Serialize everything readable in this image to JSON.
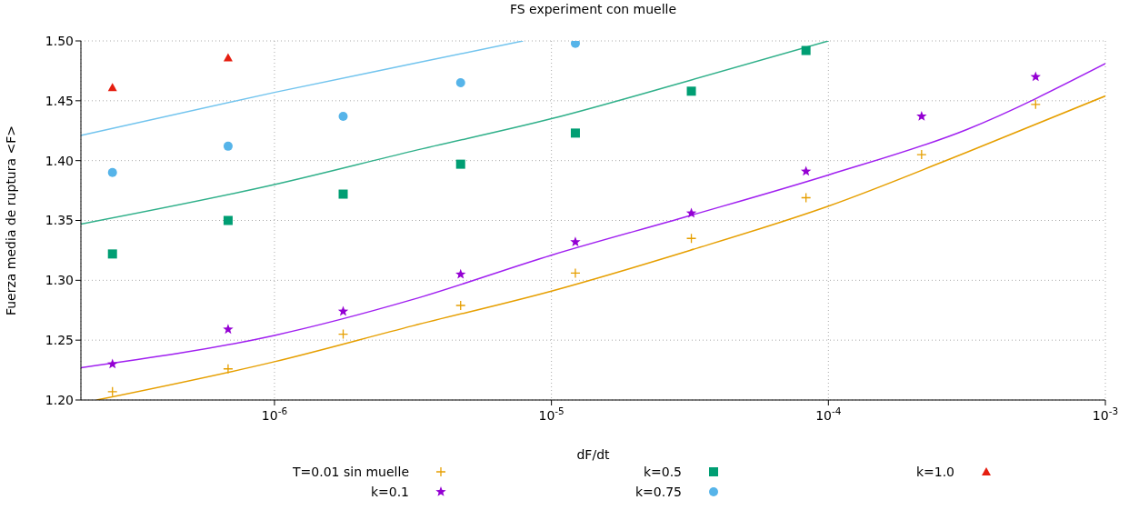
{
  "chart_data": {
    "type": "scatter",
    "title": "FS experiment con muelle",
    "xlabel": "dF/dt",
    "ylabel": "Fuerza media de ruptura <F>",
    "log": "x",
    "grid": true,
    "legend": "bottom",
    "xlim": [
      2e-07,
      0.001
    ],
    "xticks": [
      {
        "value": 1e-06,
        "label": "10$^{-6}$"
      },
      {
        "value": 1e-05,
        "label": "10$^{-5}$"
      },
      {
        "value": 0.0001,
        "label": "10$^{-4}$"
      },
      {
        "value": 0.001,
        "label": "10$^{-3}$"
      }
    ],
    "ylim": [
      1.2,
      1.5
    ],
    "yticks": [
      {
        "value": 1.2,
        "label": "1.20"
      },
      {
        "value": 1.25,
        "label": "1.25"
      },
      {
        "value": 1.3,
        "label": "1.30"
      },
      {
        "value": 1.35,
        "label": "1.35"
      },
      {
        "value": 1.4,
        "label": "1.40"
      },
      {
        "value": 1.45,
        "label": "1.45"
      },
      {
        "value": 1.5,
        "label": "1.50"
      }
    ],
    "series": [
      {
        "name": "T=0.01 sin muelle",
        "marker": "cross",
        "color": "#e69f00",
        "x": [
          2.6e-07,
          6.8e-07,
          1.77e-06,
          4.7e-06,
          1.22e-05,
          3.2e-05,
          8.3e-05,
          0.000217,
          0.00056
        ],
        "values": [
          1.207,
          1.226,
          1.255,
          1.279,
          1.306,
          1.335,
          1.369,
          1.405,
          1.447
        ]
      },
      {
        "name": "k=0.1",
        "marker": "star",
        "color": "#9400d3",
        "x": [
          2.6e-07,
          6.8e-07,
          1.77e-06,
          4.7e-06,
          1.22e-05,
          3.2e-05,
          8.3e-05,
          0.000217,
          0.00056
        ],
        "values": [
          1.23,
          1.259,
          1.274,
          1.305,
          1.332,
          1.356,
          1.391,
          1.437,
          1.47
        ]
      },
      {
        "name": "k=0.5",
        "marker": "square",
        "color": "#009e73",
        "x": [
          2.6e-07,
          6.8e-07,
          1.77e-06,
          4.7e-06,
          1.22e-05,
          3.2e-05,
          8.3e-05
        ],
        "values": [
          1.322,
          1.35,
          1.372,
          1.397,
          1.423,
          1.458,
          1.492
        ]
      },
      {
        "name": "k=0.75",
        "marker": "circle",
        "color": "#56b4e9",
        "x": [
          2.6e-07,
          6.8e-07,
          1.77e-06,
          4.7e-06,
          1.22e-05
        ],
        "values": [
          1.39,
          1.412,
          1.437,
          1.465,
          1.498
        ]
      },
      {
        "name": "k=1.0",
        "marker": "triangle",
        "color": "#e51e10",
        "x": [
          2.6e-07,
          6.8e-07
        ],
        "values": [
          1.461,
          1.486
        ]
      },
      {
        "type": "line",
        "color": "#e69f00",
        "x": [
          2.28e-07,
          1e-06,
          3.16e-06,
          1e-05,
          3.16e-05,
          0.0001,
          0.000316,
          0.001
        ],
        "values": [
          1.2,
          1.232,
          1.262,
          1.291,
          1.325,
          1.362,
          1.407,
          1.454
        ]
      },
      {
        "type": "line",
        "color": "#a020f0",
        "x": [
          2e-07,
          1e-06,
          3.16e-06,
          1e-05,
          3.16e-05,
          0.0001,
          0.000316,
          0.001
        ],
        "values": [
          1.227,
          1.254,
          1.284,
          1.321,
          1.354,
          1.388,
          1.426,
          1.481
        ]
      },
      {
        "type": "line",
        "color": "#30b08a",
        "x": [
          2e-07,
          1e-06,
          3.16e-06,
          1e-05,
          3.16e-05,
          0.0001
        ],
        "values": [
          1.347,
          1.38,
          1.408,
          1.435,
          1.467,
          1.5
        ]
      },
      {
        "type": "line",
        "color": "#72c4ee",
        "x": [
          2e-07,
          1e-06,
          3.16e-06,
          7.9e-06
        ],
        "values": [
          1.421,
          1.457,
          1.481,
          1.5
        ]
      }
    ]
  }
}
